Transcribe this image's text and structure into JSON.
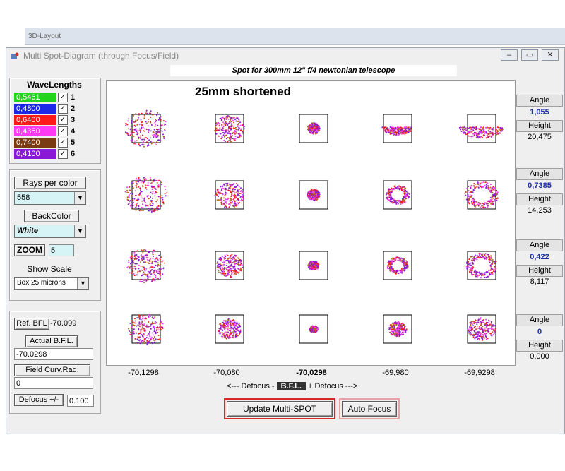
{
  "background_app": {
    "tab_label": "3D-Layout"
  },
  "window": {
    "title": "Multi Spot-Diagram   (through Focus/Field)",
    "controls": {
      "minimize": "–",
      "restore": "▭",
      "close": "✕"
    }
  },
  "caption": "Spot for 300mm 12\" f/4 newtonian telescope",
  "wavelengths": {
    "title": "WaveLengths",
    "items": [
      {
        "value": "0,5461",
        "color": "#22d41b",
        "num": "1",
        "checked": "✓"
      },
      {
        "value": "0,4800",
        "color": "#1d27e6",
        "num": "2",
        "checked": "✓"
      },
      {
        "value": "0,6400",
        "color": "#ff1a1a",
        "num": "3",
        "checked": "✓"
      },
      {
        "value": "0,4350",
        "color": "#ff3af2",
        "num": "4",
        "checked": "✓"
      },
      {
        "value": "0,7400",
        "color": "#7a3a12",
        "num": "5",
        "checked": "✓"
      },
      {
        "value": "0,4100",
        "color": "#8a19d6",
        "num": "6",
        "checked": "✓"
      }
    ]
  },
  "rays": {
    "label": "Rays per color",
    "value": "558"
  },
  "backcolor": {
    "label": "BackColor",
    "value": "White"
  },
  "zoom": {
    "label": "ZOOM",
    "value": "5"
  },
  "scale": {
    "label": "Show Scale",
    "value": "Box 25 microns"
  },
  "bfl": {
    "ref_label": "Ref.  BFL",
    "ref_value": "-70.099",
    "actual_label": "Actual  B.F.L.",
    "actual_value": "-70.0298",
    "curv_label": "Field Curv.Rad.",
    "curv_value": "0",
    "defocus_label": "Defocus +/-",
    "defocus_value": "0.100"
  },
  "diagram": {
    "title": "25mm shortened",
    "columns": [
      "-70,1298",
      "-70,080",
      "-70,0298",
      "-69,980",
      "-69,9298"
    ],
    "defocus_left": "<---  Defocus  -",
    "bfl_label": "B.F.L.",
    "defocus_right": "+ Defocus --->"
  },
  "fields": [
    {
      "angle_label": "Angle",
      "angle": "1,055",
      "height_label": "Height",
      "height": "20,475"
    },
    {
      "angle_label": "Angle",
      "angle": "0,7385",
      "height_label": "Height",
      "height": "14,253"
    },
    {
      "angle_label": "Angle",
      "angle": "0,422",
      "height_label": "Height",
      "height": "8,117"
    },
    {
      "angle_label": "Angle",
      "angle": "0",
      "height_label": "Height",
      "height": "0,000"
    }
  ],
  "buttons": {
    "update": "Update  Multi-SPOT",
    "autofocus": "Auto Focus"
  },
  "colors": {
    "spot_primary": "#8a19d6",
    "spot_secondary": "#ff3af2",
    "spot_core": "#ff1a1a",
    "spot_edge": "#b06a1a",
    "accent_blue": "#1c2fa8"
  }
}
